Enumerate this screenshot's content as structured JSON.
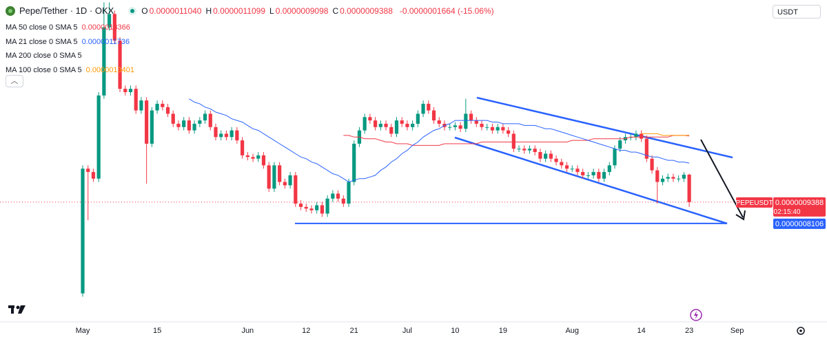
{
  "header": {
    "symbol": "Pepe/Tether · 1D · OKX",
    "ohlc": [
      {
        "key": "O",
        "value": "0.0000011040"
      },
      {
        "key": "H",
        "value": "0.0000011099"
      },
      {
        "key": "L",
        "value": "0.0000009098"
      },
      {
        "key": "C",
        "value": "0.0000009388"
      }
    ],
    "change": "-0.0000001664 (-15.06%)"
  },
  "currency": "USDT",
  "chart_data": {
    "type": "candlestick",
    "ylim": [
      2.52e-07,
      2.154e-06
    ],
    "up_color": "#089981",
    "down_color": "#f23645",
    "open": [
      3.9e-07,
      1.14e-06,
      1.12e-06,
      1.08e-06,
      1.58e-06,
      1.99e-06,
      2.07e-06,
      1.91e-06,
      1.62e-06,
      1.6e-06,
      1.62e-06,
      1.49e-06,
      1.55e-06,
      1.29e-06,
      1.49e-06,
      1.53e-06,
      1.51e-06,
      1.47e-06,
      1.41e-06,
      1.39e-06,
      1.43e-06,
      1.37e-06,
      1.41e-06,
      1.43e-06,
      1.47e-06,
      1.39e-06,
      1.33e-06,
      1.35e-06,
      1.33e-06,
      1.37e-06,
      1.31e-06,
      1.22e-06,
      1.21e-06,
      1.2e-06,
      1.22e-06,
      1.16e-06,
      1.02e-06,
      1.16e-06,
      1.06e-06,
      1.04e-06,
      1.1e-06,
      9.3e-07,
      9.1e-07,
      9e-07,
      8.9e-07,
      9.2e-07,
      8.7e-07,
      9.6e-07,
      9.9e-07,
      9.6e-07,
      9.3e-07,
      1.06e-06,
      1.29e-06,
      1.37e-06,
      1.45e-06,
      1.43e-06,
      1.39e-06,
      1.41e-06,
      1.39e-06,
      1.35e-06,
      1.43e-06,
      1.41e-06,
      1.39e-06,
      1.41e-06,
      1.47e-06,
      1.53e-06,
      1.49e-06,
      1.43e-06,
      1.41e-06,
      1.39e-06,
      1.39e-06,
      1.4e-06,
      1.38e-06,
      1.47e-06,
      1.43e-06,
      1.41e-06,
      1.39e-06,
      1.39e-06,
      1.37e-06,
      1.39e-06,
      1.37e-06,
      1.35e-06,
      1.26e-06,
      1.26e-06,
      1.25e-06,
      1.26e-06,
      1.24e-06,
      1.2e-06,
      1.23e-06,
      1.2e-06,
      1.18e-06,
      1.16e-06,
      1.14e-06,
      1.14e-06,
      1.12e-06,
      1.1e-06,
      1.1e-06,
      1.12e-06,
      1.08e-06,
      1.12e-06,
      1.16e-06,
      1.26e-06,
      1.31e-06,
      1.33e-06,
      1.33e-06,
      1.35e-06,
      1.32e-06,
      1.2e-06,
      1.13e-06,
      1.06e-06,
      1.08e-06,
      1.09e-06,
      1.08e-06,
      1.08e-06,
      1.104e-06
    ],
    "high": [
      1.16e-06,
      1.16e-06,
      1.14e-06,
      1.6e-06,
      2.14e-06,
      2.14e-06,
      2.09e-06,
      1.93e-06,
      1.64e-06,
      1.64e-06,
      1.64e-06,
      1.57e-06,
      1.57e-06,
      1.51e-06,
      1.55e-06,
      1.55e-06,
      1.53e-06,
      1.49e-06,
      1.43e-06,
      1.45e-06,
      1.45e-06,
      1.43e-06,
      1.45e-06,
      1.49e-06,
      1.49e-06,
      1.41e-06,
      1.37e-06,
      1.37e-06,
      1.39e-06,
      1.39e-06,
      1.33e-06,
      1.24e-06,
      1.23e-06,
      1.24e-06,
      1.24e-06,
      1.18e-06,
      1.18e-06,
      1.18e-06,
      1.08e-06,
      1.12e-06,
      1.12e-06,
      9.5e-07,
      9.3e-07,
      9.2e-07,
      9.4e-07,
      9.4e-07,
      9.8e-07,
      1.01e-06,
      1.01e-06,
      9.8e-07,
      1.08e-06,
      1.31e-06,
      1.39e-06,
      1.47e-06,
      1.47e-06,
      1.45e-06,
      1.43e-06,
      1.43e-06,
      1.41e-06,
      1.45e-06,
      1.45e-06,
      1.43e-06,
      1.43e-06,
      1.49e-06,
      1.55e-06,
      1.55e-06,
      1.51e-06,
      1.45e-06,
      1.43e-06,
      1.41e-06,
      1.42e-06,
      1.42e-06,
      1.56e-06,
      1.49e-06,
      1.45e-06,
      1.43e-06,
      1.41e-06,
      1.41e-06,
      1.41e-06,
      1.41e-06,
      1.39e-06,
      1.37e-06,
      1.28e-06,
      1.28e-06,
      1.28e-06,
      1.28e-06,
      1.26e-06,
      1.25e-06,
      1.25e-06,
      1.22e-06,
      1.2e-06,
      1.18e-06,
      1.16e-06,
      1.16e-06,
      1.14e-06,
      1.12e-06,
      1.14e-06,
      1.14e-06,
      1.14e-06,
      1.18e-06,
      1.28e-06,
      1.33e-06,
      1.35e-06,
      1.35e-06,
      1.37e-06,
      1.37e-06,
      1.34e-06,
      1.22e-06,
      1.15e-06,
      1.1e-06,
      1.11e-06,
      1.11e-06,
      1.1e-06,
      1.12e-06,
      1.1099e-06
    ],
    "low": [
      3.7e-07,
      8.3e-07,
      1.06e-06,
      1.06e-06,
      1.56e-06,
      1.97e-06,
      1.89e-06,
      1.6e-06,
      1.58e-06,
      1.58e-06,
      1.47e-06,
      1.47e-06,
      1.05e-06,
      1.27e-06,
      1.47e-06,
      1.49e-06,
      1.45e-06,
      1.39e-06,
      1.37e-06,
      1.37e-06,
      1.35e-06,
      1.35e-06,
      1.39e-06,
      1.41e-06,
      1.37e-06,
      1.31e-06,
      1.31e-06,
      1.31e-06,
      1.31e-06,
      1.29e-06,
      1.2e-06,
      1.19e-06,
      1.18e-06,
      1.18e-06,
      1.14e-06,
      1e-06,
      1e-06,
      1.04e-06,
      1.02e-06,
      1.02e-06,
      9.1e-07,
      8.9e-07,
      8.8e-07,
      8.7e-07,
      8.7e-07,
      8.5e-07,
      8.5e-07,
      9.4e-07,
      9.4e-07,
      9.1e-07,
      9.1e-07,
      1.04e-06,
      1.27e-06,
      1.35e-06,
      1.41e-06,
      1.37e-06,
      1.37e-06,
      1.37e-06,
      1.33e-06,
      1.33e-06,
      1.39e-06,
      1.37e-06,
      1.37e-06,
      1.39e-06,
      1.45e-06,
      1.47e-06,
      1.41e-06,
      1.39e-06,
      1.37e-06,
      1.37e-06,
      1.37e-06,
      1.36e-06,
      1.36e-06,
      1.41e-06,
      1.39e-06,
      1.37e-06,
      1.37e-06,
      1.35e-06,
      1.35e-06,
      1.35e-06,
      1.33e-06,
      1.24e-06,
      1.24e-06,
      1.23e-06,
      1.23e-06,
      1.22e-06,
      1.18e-06,
      1.18e-06,
      1.18e-06,
      1.16e-06,
      1.14e-06,
      1.12e-06,
      1.12e-06,
      1.1e-06,
      1.08e-06,
      1.08e-06,
      1.08e-06,
      1.06e-06,
      1.06e-06,
      1.1e-06,
      1.14e-06,
      1.24e-06,
      1.29e-06,
      1.31e-06,
      1.31e-06,
      1.3e-06,
      1.18e-06,
      1.11e-06,
      9.3e-07,
      1.04e-06,
      1.06e-06,
      1.06e-06,
      1.06e-06,
      1.06e-06,
      9.098e-07
    ],
    "close": [
      1.14e-06,
      1.12e-06,
      1.08e-06,
      1.58e-06,
      1.99e-06,
      2.07e-06,
      1.91e-06,
      1.62e-06,
      1.6e-06,
      1.62e-06,
      1.49e-06,
      1.55e-06,
      1.29e-06,
      1.49e-06,
      1.53e-06,
      1.51e-06,
      1.47e-06,
      1.41e-06,
      1.39e-06,
      1.43e-06,
      1.37e-06,
      1.41e-06,
      1.43e-06,
      1.47e-06,
      1.39e-06,
      1.33e-06,
      1.35e-06,
      1.33e-06,
      1.37e-06,
      1.31e-06,
      1.22e-06,
      1.21e-06,
      1.2e-06,
      1.22e-06,
      1.16e-06,
      1.02e-06,
      1.16e-06,
      1.06e-06,
      1.04e-06,
      1.1e-06,
      9.3e-07,
      9.1e-07,
      9e-07,
      8.9e-07,
      9.2e-07,
      8.7e-07,
      9.6e-07,
      9.9e-07,
      9.6e-07,
      9.3e-07,
      1.06e-06,
      1.29e-06,
      1.37e-06,
      1.45e-06,
      1.43e-06,
      1.39e-06,
      1.41e-06,
      1.39e-06,
      1.35e-06,
      1.43e-06,
      1.41e-06,
      1.39e-06,
      1.41e-06,
      1.47e-06,
      1.53e-06,
      1.49e-06,
      1.43e-06,
      1.41e-06,
      1.39e-06,
      1.39e-06,
      1.4e-06,
      1.38e-06,
      1.47e-06,
      1.43e-06,
      1.41e-06,
      1.39e-06,
      1.39e-06,
      1.37e-06,
      1.39e-06,
      1.37e-06,
      1.35e-06,
      1.26e-06,
      1.26e-06,
      1.25e-06,
      1.26e-06,
      1.24e-06,
      1.2e-06,
      1.23e-06,
      1.2e-06,
      1.18e-06,
      1.16e-06,
      1.14e-06,
      1.14e-06,
      1.12e-06,
      1.1e-06,
      1.1e-06,
      1.12e-06,
      1.08e-06,
      1.12e-06,
      1.16e-06,
      1.26e-06,
      1.31e-06,
      1.33e-06,
      1.33e-06,
      1.35e-06,
      1.32e-06,
      1.2e-06,
      1.13e-06,
      1.06e-06,
      1.08e-06,
      1.09e-06,
      1.08e-06,
      1.08e-06,
      1.104e-06,
      9.388e-07
    ],
    "x_labels": [
      "May",
      "15",
      "Jun",
      "12",
      "21",
      "Jul",
      "10",
      "19",
      "Aug",
      "14",
      "23",
      "Sep"
    ],
    "series": [
      {
        "name": "MA 50 close 0 SMA 5",
        "color": "#f23645",
        "value_label": "0.0000013366",
        "values": [
          null,
          null,
          null,
          null,
          null,
          null,
          null,
          null,
          null,
          null,
          null,
          null,
          null,
          null,
          null,
          null,
          null,
          null,
          null,
          null,
          null,
          null,
          null,
          null,
          null,
          null,
          null,
          null,
          null,
          null,
          null,
          null,
          null,
          null,
          null,
          null,
          null,
          null,
          null,
          null,
          null,
          null,
          null,
          null,
          null,
          null,
          null,
          null,
          null,
          1.34e-06,
          1.34e-06,
          1.33e-06,
          1.33e-06,
          1.32e-06,
          1.32e-06,
          1.32e-06,
          1.31e-06,
          1.3e-06,
          1.3e-06,
          1.29e-06,
          1.29e-06,
          1.29e-06,
          1.28e-06,
          1.28e-06,
          1.28e-06,
          1.28e-06,
          1.28e-06,
          1.28e-06,
          1.29e-06,
          1.29e-06,
          1.29e-06,
          1.29e-06,
          1.29e-06,
          1.29e-06,
          1.29e-06,
          1.3e-06,
          1.3e-06,
          1.3e-06,
          1.3e-06,
          1.3e-06,
          1.3e-06,
          1.3e-06,
          1.3e-06,
          1.3e-06,
          1.3e-06,
          1.3e-06,
          1.3e-06,
          1.3e-06,
          1.3e-06,
          1.3e-06,
          1.3e-06,
          1.3e-06,
          1.31e-06,
          1.31e-06,
          1.31e-06,
          1.31e-06,
          1.32e-06,
          1.32e-06,
          1.32e-06,
          1.32e-06,
          1.32e-06,
          1.32e-06,
          1.32e-06,
          1.33e-06,
          1.33e-06,
          1.33e-06,
          1.33e-06,
          1.33e-06,
          1.33e-06,
          1.33e-06,
          1.33e-06,
          1.34e-06,
          1.34e-06,
          1.34e-06,
          1.3366e-06
        ]
      },
      {
        "name": "MA 21 close 0 SMA 5",
        "color": "#2962ff",
        "value_label": "0.0000011736",
        "values": [
          null,
          null,
          null,
          null,
          null,
          null,
          null,
          null,
          null,
          null,
          null,
          null,
          null,
          null,
          null,
          null,
          null,
          null,
          null,
          null,
          1.56e-06,
          1.54e-06,
          1.53e-06,
          1.51e-06,
          1.5e-06,
          1.48e-06,
          1.47e-06,
          1.46e-06,
          1.44e-06,
          1.43e-06,
          1.42e-06,
          1.4e-06,
          1.38e-06,
          1.37e-06,
          1.35e-06,
          1.33e-06,
          1.31e-06,
          1.29e-06,
          1.27e-06,
          1.25e-06,
          1.23e-06,
          1.21e-06,
          1.2e-06,
          1.18e-06,
          1.17e-06,
          1.15e-06,
          1.13e-06,
          1.11e-06,
          1.1e-06,
          1.08e-06,
          1.06e-06,
          1.07e-06,
          1.08e-06,
          1.08e-06,
          1.09e-06,
          1.1e-06,
          1.13e-06,
          1.15e-06,
          1.18e-06,
          1.2e-06,
          1.23e-06,
          1.25e-06,
          1.28e-06,
          1.3e-06,
          1.33e-06,
          1.35e-06,
          1.37e-06,
          1.38e-06,
          1.4e-06,
          1.41e-06,
          1.43e-06,
          1.43e-06,
          1.43e-06,
          1.43e-06,
          1.43e-06,
          1.43e-06,
          1.43e-06,
          1.42e-06,
          1.42e-06,
          1.41e-06,
          1.41e-06,
          1.41e-06,
          1.41e-06,
          1.4e-06,
          1.4e-06,
          1.4e-06,
          1.39e-06,
          1.38e-06,
          1.38e-06,
          1.37e-06,
          1.36e-06,
          1.35e-06,
          1.34e-06,
          1.33e-06,
          1.32e-06,
          1.31e-06,
          1.3e-06,
          1.29e-06,
          1.28e-06,
          1.27e-06,
          1.26e-06,
          1.25e-06,
          1.25e-06,
          1.24e-06,
          1.24e-06,
          1.23e-06,
          1.22e-06,
          1.21e-06,
          1.21e-06,
          1.2e-06,
          1.19e-06,
          1.19e-06,
          1.18e-06,
          1.18e-06,
          1.1736e-06
        ]
      },
      {
        "name": "MA 200 close 0 SMA 5",
        "color": "#131722"
      },
      {
        "name": "MA 100 close 0 SMA 5",
        "color": "#ff9800",
        "value_label": "0.0000013401",
        "values": [
          null,
          null,
          null,
          null,
          null,
          null,
          null,
          null,
          null,
          null,
          null,
          null,
          null,
          null,
          null,
          null,
          null,
          null,
          null,
          null,
          null,
          null,
          null,
          null,
          null,
          null,
          null,
          null,
          null,
          null,
          null,
          null,
          null,
          null,
          null,
          null,
          null,
          null,
          null,
          null,
          null,
          null,
          null,
          null,
          null,
          null,
          null,
          null,
          null,
          null,
          null,
          null,
          null,
          null,
          null,
          null,
          null,
          null,
          null,
          null,
          null,
          null,
          null,
          null,
          null,
          null,
          null,
          null,
          null,
          null,
          null,
          null,
          null,
          null,
          null,
          null,
          null,
          null,
          null,
          null,
          null,
          null,
          null,
          null,
          null,
          null,
          null,
          null,
          null,
          null,
          null,
          null,
          null,
          null,
          null,
          null,
          null,
          null,
          null,
          null,
          null,
          null,
          null,
          null,
          null,
          1.35e-06,
          1.35e-06,
          1.35e-06,
          1.35e-06,
          1.34e-06,
          1.34e-06,
          1.34e-06,
          1.34e-06,
          1.34e-06,
          1.3401e-06
        ]
      }
    ],
    "last_price": {
      "symbol": "PEPEUSDT",
      "label": "0.0000009388",
      "countdown": "02:15:40"
    },
    "levels": [
      {
        "value": 8.106e-07,
        "label": "0.0000008106",
        "color": "#2962ff"
      }
    ]
  }
}
